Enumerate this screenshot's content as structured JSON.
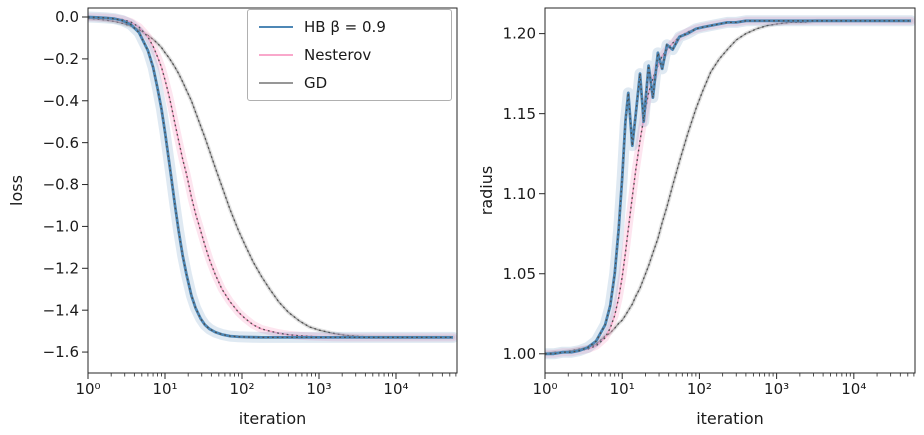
{
  "chart_data": [
    {
      "type": "line",
      "title": "",
      "xlabel": "iteration",
      "ylabel": "loss",
      "xscale": "log",
      "xlim": [
        1,
        62000
      ],
      "ylim": [
        -1.7,
        0.043
      ],
      "grid": false,
      "xticks": [
        1,
        10,
        100,
        1000,
        10000
      ],
      "xtick_labels": [
        "10⁰",
        "10¹",
        "10²",
        "10³",
        "10⁴"
      ],
      "yticks": [
        0.0,
        -0.2,
        -0.4,
        -0.6,
        -0.8,
        -1.0,
        -1.2,
        -1.4,
        -1.6
      ],
      "ytick_labels": [
        "0.0",
        "−0.2",
        "−0.4",
        "−0.6",
        "−0.8",
        "−1.0",
        "−1.2",
        "−1.4",
        "−1.6"
      ],
      "legend": {
        "position": "upper right",
        "entries": [
          {
            "label": "HB β = 0.9"
          },
          {
            "label": "Nesterov"
          },
          {
            "label": "GD"
          }
        ]
      },
      "dotted_overlay": {
        "color": "#4d4d4d",
        "width": 1.3,
        "dash": "1.8 3"
      },
      "x": [
        1,
        1.3,
        1.7,
        2.2,
        2.8,
        3.6,
        4.6,
        6,
        7,
        8,
        9,
        10,
        11,
        12,
        13.5,
        15,
        17,
        19,
        22,
        25,
        29,
        33,
        38,
        45,
        55,
        70,
        90,
        110,
        140,
        180,
        230,
        300,
        400,
        550,
        750,
        1000,
        1500,
        2200,
        3300,
        5000,
        7500,
        11000,
        17000,
        25000,
        40000,
        55000
      ],
      "series": [
        {
          "name": "HB β = 0.9",
          "color": "#4e87b5",
          "line_width": 2.8,
          "band_width": 11,
          "band_opacity": 0.18,
          "y": [
            0.0,
            -0.002,
            -0.004,
            -0.008,
            -0.017,
            -0.036,
            -0.074,
            -0.16,
            -0.24,
            -0.34,
            -0.44,
            -0.55,
            -0.66,
            -0.76,
            -0.9,
            -1.02,
            -1.14,
            -1.23,
            -1.33,
            -1.39,
            -1.44,
            -1.47,
            -1.49,
            -1.505,
            -1.516,
            -1.524,
            -1.527,
            -1.528,
            -1.529,
            -1.53,
            -1.53,
            -1.53,
            -1.53,
            -1.53,
            -1.53,
            -1.53,
            -1.53,
            -1.53,
            -1.53,
            -1.53,
            -1.53,
            -1.53,
            -1.53,
            -1.53,
            -1.53,
            -1.53
          ]
        },
        {
          "name": "Nesterov",
          "color": "#f9a8cb",
          "line_width": 1.6,
          "band_width": 8,
          "band_opacity": 0.3,
          "y": [
            -0.001,
            -0.002,
            -0.003,
            -0.006,
            -0.012,
            -0.024,
            -0.048,
            -0.095,
            -0.14,
            -0.19,
            -0.24,
            -0.3,
            -0.36,
            -0.42,
            -0.51,
            -0.59,
            -0.68,
            -0.75,
            -0.86,
            -0.94,
            -1.02,
            -1.09,
            -1.16,
            -1.23,
            -1.3,
            -1.36,
            -1.41,
            -1.44,
            -1.47,
            -1.49,
            -1.5,
            -1.51,
            -1.517,
            -1.522,
            -1.525,
            -1.527,
            -1.529,
            -1.53,
            -1.53,
            -1.53,
            -1.53,
            -1.53,
            -1.53,
            -1.53,
            -1.53,
            -1.53
          ]
        },
        {
          "name": "GD",
          "color": "#979797",
          "line_width": 1.3,
          "band_width": 4,
          "band_opacity": 0.25,
          "y": [
            -0.007,
            -0.01,
            -0.015,
            -0.021,
            -0.03,
            -0.043,
            -0.06,
            -0.088,
            -0.107,
            -0.126,
            -0.146,
            -0.17,
            -0.19,
            -0.21,
            -0.24,
            -0.27,
            -0.31,
            -0.35,
            -0.4,
            -0.455,
            -0.52,
            -0.575,
            -0.64,
            -0.72,
            -0.81,
            -0.92,
            -1.02,
            -1.09,
            -1.17,
            -1.24,
            -1.3,
            -1.36,
            -1.41,
            -1.45,
            -1.48,
            -1.495,
            -1.51,
            -1.52,
            -1.525,
            -1.528,
            -1.529,
            -1.53,
            -1.53,
            -1.53,
            -1.53,
            -1.53
          ]
        }
      ]
    },
    {
      "type": "line",
      "title": "",
      "xlabel": "iteration",
      "ylabel": "radius",
      "xscale": "log",
      "xlim": [
        1,
        62000
      ],
      "ylim": [
        0.988,
        1.216
      ],
      "grid": false,
      "xticks": [
        1,
        10,
        100,
        1000,
        10000
      ],
      "xtick_labels": [
        "10⁰",
        "10¹",
        "10²",
        "10³",
        "10⁴"
      ],
      "yticks": [
        1.0,
        1.05,
        1.1,
        1.15,
        1.2
      ],
      "ytick_labels": [
        "1.00",
        "1.05",
        "1.10",
        "1.15",
        "1.20"
      ],
      "legend": null,
      "dotted_overlay": {
        "color": "#4d4d4d",
        "width": 1.3,
        "dash": "1.8 3"
      },
      "x": [
        1,
        1.3,
        1.7,
        2.2,
        2.8,
        3.6,
        4.6,
        6,
        7,
        8,
        9,
        10,
        11,
        12,
        13.5,
        15,
        17,
        19,
        22,
        25,
        29,
        33,
        38,
        45,
        55,
        70,
        90,
        110,
        140,
        180,
        230,
        300,
        400,
        550,
        750,
        1000,
        1500,
        2200,
        3300,
        5000,
        7500,
        11000,
        17000,
        25000,
        40000,
        55000
      ],
      "series": [
        {
          "name": "HB β = 0.9",
          "color": "#4e87b5",
          "line_width": 2.8,
          "band_width": 11,
          "band_opacity": 0.18,
          "y": [
            1.0,
            1.0,
            1.001,
            1.001,
            1.002,
            1.004,
            1.008,
            1.018,
            1.03,
            1.05,
            1.078,
            1.11,
            1.145,
            1.163,
            1.13,
            1.15,
            1.175,
            1.145,
            1.18,
            1.16,
            1.188,
            1.178,
            1.193,
            1.19,
            1.198,
            1.2,
            1.203,
            1.204,
            1.205,
            1.206,
            1.207,
            1.207,
            1.208,
            1.208,
            1.208,
            1.208,
            1.208,
            1.208,
            1.208,
            1.208,
            1.208,
            1.208,
            1.208,
            1.208,
            1.208,
            1.208
          ]
        },
        {
          "name": "Nesterov",
          "color": "#f9a8cb",
          "line_width": 1.6,
          "band_width": 8,
          "band_opacity": 0.3,
          "y": [
            1.0,
            1.0,
            1.001,
            1.001,
            1.002,
            1.003,
            1.005,
            1.01,
            1.016,
            1.024,
            1.035,
            1.048,
            1.063,
            1.078,
            1.098,
            1.115,
            1.133,
            1.147,
            1.163,
            1.172,
            1.18,
            1.186,
            1.19,
            1.194,
            1.198,
            1.201,
            1.203,
            1.204,
            1.205,
            1.206,
            1.207,
            1.207,
            1.208,
            1.208,
            1.208,
            1.208,
            1.208,
            1.208,
            1.208,
            1.208,
            1.208,
            1.208,
            1.208,
            1.208,
            1.208,
            1.208
          ]
        },
        {
          "name": "GD",
          "color": "#979797",
          "line_width": 1.3,
          "band_width": 4,
          "band_opacity": 0.25,
          "y": [
            1.0,
            1.001,
            1.001,
            1.002,
            1.003,
            1.004,
            1.006,
            1.011,
            1.013,
            1.016,
            1.019,
            1.021,
            1.024,
            1.027,
            1.031,
            1.036,
            1.041,
            1.047,
            1.055,
            1.063,
            1.072,
            1.082,
            1.092,
            1.105,
            1.12,
            1.137,
            1.153,
            1.164,
            1.176,
            1.184,
            1.19,
            1.196,
            1.2,
            1.203,
            1.205,
            1.206,
            1.207,
            1.207,
            1.208,
            1.208,
            1.208,
            1.208,
            1.208,
            1.208,
            1.208,
            1.208
          ]
        }
      ]
    }
  ],
  "style": {
    "spine_color": "#262626",
    "tick_color": "#262626",
    "text_color": "#1a1a1a"
  }
}
